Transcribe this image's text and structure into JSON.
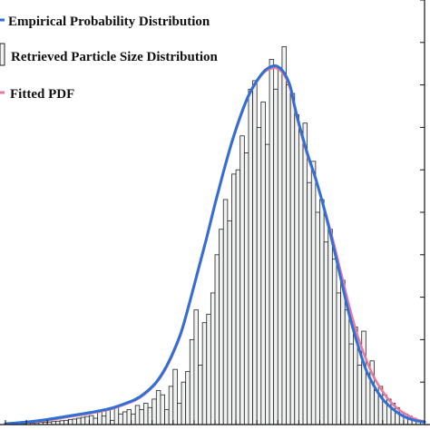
{
  "chart_data": {
    "type": "bar",
    "title": "",
    "xlabel": "",
    "ylabel": "",
    "xlim": [
      0,
      100
    ],
    "ylim": [
      0,
      100
    ],
    "bin_start": 0,
    "bin_width": 1,
    "grid": false,
    "legend_position": "top-left",
    "bar_fill": "#f1f3f3",
    "bar_stroke": "#222222",
    "axis_color": "#111111",
    "legend": {
      "empirical": "Empirical Probability Distribution",
      "histogram": "Retrieved Particle Size Distribution",
      "fitted": "Fitted PDF"
    },
    "histogram": {
      "name": "Retrieved Particle Size Distribution",
      "values": [
        0.1,
        0.1,
        0.1,
        0.2,
        0.2,
        0.3,
        0.3,
        0.4,
        0.5,
        0.5,
        0.6,
        0.7,
        0.8,
        0.9,
        1.0,
        1.2,
        1.3,
        1.5,
        1.7,
        1.9,
        2.1,
        1.5,
        3.0,
        2.0,
        3.5,
        1.0,
        4.0,
        2.5,
        3.0,
        3.5,
        2.5,
        4.5,
        3.5,
        5.0,
        4.0,
        6.0,
        8.0,
        7.0,
        3.5,
        9.0,
        13.0,
        5.0,
        10.0,
        12.5,
        20.0,
        27.0,
        14.0,
        24.0,
        26.0,
        31.0,
        40.0,
        46.0,
        53.0,
        48.0,
        59.0,
        60.0,
        68.0,
        64.0,
        79.0,
        81.0,
        70.0,
        76.0,
        66.0,
        86.0,
        79.0,
        84.0,
        89.0,
        80.0,
        78.0,
        73.0,
        69.0,
        71.0,
        57.0,
        62.0,
        50.0,
        53.0,
        43.0,
        46.0,
        39.0,
        31.0,
        34.0,
        27.0,
        19.0,
        23.0,
        14.0,
        22.0,
        12.0,
        15.0,
        8.0,
        9.0,
        7.0,
        6.0,
        5.0,
        4.0,
        3.0,
        2.5,
        2.0,
        1.5,
        1.0,
        0.7
      ]
    },
    "series": [
      {
        "name": "Empirical Probability Distribution",
        "color": "#2f6fd6",
        "x": [
          0,
          5,
          10,
          15,
          20,
          25,
          30,
          32,
          34,
          36,
          38,
          40,
          42,
          44,
          46,
          48,
          50,
          52,
          54,
          56,
          58,
          60,
          62,
          64,
          65,
          66,
          67,
          68,
          69,
          70,
          72,
          74,
          76,
          78,
          80,
          82,
          84,
          86,
          88,
          90,
          92,
          94,
          96,
          98,
          100
        ],
        "y": [
          0.2,
          0.6,
          1.2,
          2.0,
          2.8,
          3.8,
          5.5,
          6.5,
          8.0,
          10.0,
          13.0,
          17.0,
          22.0,
          29.0,
          36.5,
          44.0,
          52.0,
          59.5,
          66.5,
          72.5,
          77.5,
          81.0,
          83.5,
          84.5,
          84.3,
          83.5,
          82.0,
          79.5,
          75.0,
          71.0,
          64.0,
          58.0,
          51.0,
          43.0,
          34.5,
          26.0,
          19.0,
          13.0,
          9.0,
          6.0,
          4.0,
          2.5,
          1.5,
          0.9,
          0.6
        ]
      },
      {
        "name": "Fitted PDF",
        "color": "#e87a9a",
        "x": [
          0,
          5,
          10,
          15,
          20,
          25,
          30,
          32,
          34,
          36,
          38,
          40,
          42,
          44,
          46,
          48,
          50,
          52,
          54,
          56,
          58,
          60,
          62,
          64,
          65,
          66,
          67,
          68,
          69,
          70,
          72,
          74,
          76,
          78,
          80,
          82,
          84,
          86,
          88,
          90,
          92,
          94,
          96,
          98,
          100
        ],
        "y": [
          0.2,
          0.5,
          1.0,
          1.8,
          2.6,
          3.6,
          5.3,
          6.3,
          7.8,
          9.8,
          12.7,
          16.7,
          21.7,
          28.7,
          36.2,
          43.7,
          51.7,
          59.2,
          66.2,
          72.2,
          77.3,
          80.8,
          83.2,
          84.0,
          83.8,
          83.0,
          81.5,
          79.0,
          74.6,
          70.6,
          63.6,
          57.8,
          51.2,
          44.0,
          36.0,
          28.0,
          21.0,
          15.5,
          11.0,
          7.8,
          5.2,
          3.4,
          2.2,
          1.2,
          0.7
        ]
      }
    ]
  }
}
